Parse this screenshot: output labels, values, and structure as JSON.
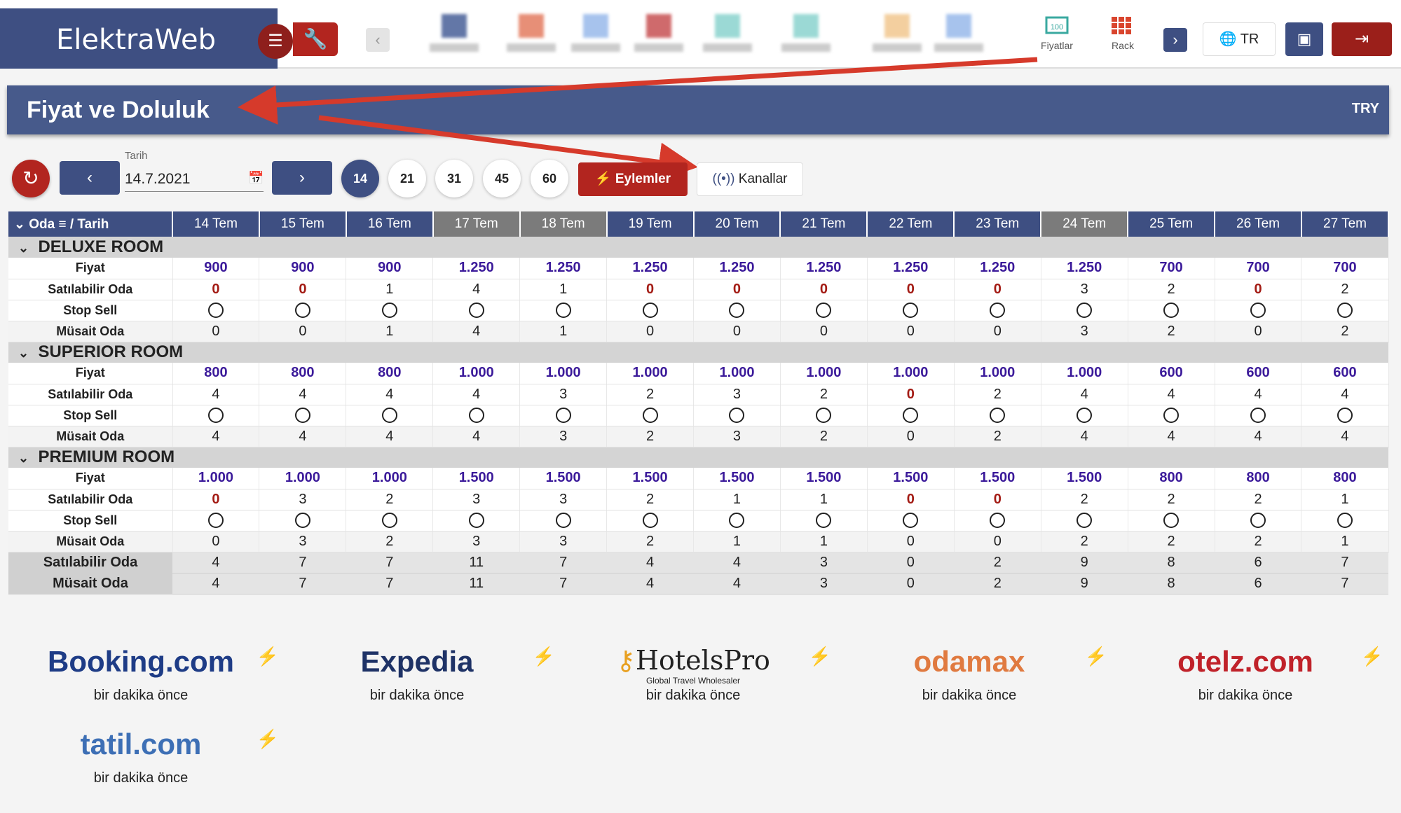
{
  "app": {
    "brand": "ElektraWeb",
    "toolbar": {
      "icons": [
        {
          "name": "blurred-1",
          "color": "#2f4a8a"
        },
        {
          "name": "blurred-2",
          "color": "#e06a4a"
        },
        {
          "name": "blurred-3",
          "color": "#8ab0e8"
        },
        {
          "name": "blurred-4",
          "color": "#c0393b"
        },
        {
          "name": "blurred-5",
          "color": "#7acdc7"
        },
        {
          "name": "blurred-6",
          "color": "#7acdc7"
        },
        {
          "name": "blurred-7",
          "color": "#f0c080"
        },
        {
          "name": "blurred-8",
          "color": "#8ab0e8"
        }
      ],
      "fiyatlar_label": "Fiyatlar",
      "rack_label": "Rack",
      "lang_label": "TR"
    }
  },
  "page": {
    "title": "Fiyat ve Doluluk",
    "currency": "TRY"
  },
  "controls": {
    "date_label": "Tarih",
    "date_value": "14.7.2021",
    "ranges": [
      "14",
      "21",
      "31",
      "45",
      "60"
    ],
    "eylemler": "Eylemler",
    "kanallar": "Kanallar"
  },
  "grid": {
    "header_label": "Oda",
    "header_suffix": "/ Tarih",
    "dates": [
      "14 Tem",
      "15 Tem",
      "16 Tem",
      "17 Tem",
      "18 Tem",
      "19 Tem",
      "20 Tem",
      "21 Tem",
      "22 Tem",
      "23 Tem",
      "24 Tem",
      "25 Tem",
      "26 Tem",
      "27 Tem"
    ],
    "labels": {
      "price": "Fiyat",
      "sellable": "Satılabilir Oda",
      "stop": "Stop Sell",
      "available": "Müsait Oda"
    },
    "rooms": [
      {
        "name": "DELUXE ROOM",
        "price": [
          "900",
          "900",
          "900",
          "1.250",
          "1.250",
          "1.250",
          "1.250",
          "1.250",
          "1.250",
          "1.250",
          "1.250",
          "700",
          "700",
          "700"
        ],
        "sellable": [
          "0",
          "0",
          "1",
          "4",
          "1",
          "0",
          "0",
          "0",
          "0",
          "0",
          "3",
          "2",
          "0",
          "2"
        ],
        "available": [
          "0",
          "0",
          "1",
          "4",
          "1",
          "0",
          "0",
          "0",
          "0",
          "0",
          "3",
          "2",
          "0",
          "2"
        ]
      },
      {
        "name": "SUPERIOR ROOM",
        "price": [
          "800",
          "800",
          "800",
          "1.000",
          "1.000",
          "1.000",
          "1.000",
          "1.000",
          "1.000",
          "1.000",
          "1.000",
          "600",
          "600",
          "600"
        ],
        "sellable": [
          "4",
          "4",
          "4",
          "4",
          "3",
          "2",
          "3",
          "2",
          "0",
          "2",
          "4",
          "4",
          "4",
          "4"
        ],
        "available": [
          "4",
          "4",
          "4",
          "4",
          "3",
          "2",
          "3",
          "2",
          "0",
          "2",
          "4",
          "4",
          "4",
          "4"
        ]
      },
      {
        "name": "PREMIUM ROOM",
        "price": [
          "1.000",
          "1.000",
          "1.000",
          "1.500",
          "1.500",
          "1.500",
          "1.500",
          "1.500",
          "1.500",
          "1.500",
          "1.500",
          "800",
          "800",
          "800"
        ],
        "sellable": [
          "0",
          "3",
          "2",
          "3",
          "3",
          "2",
          "1",
          "1",
          "0",
          "0",
          "2",
          "2",
          "2",
          "1"
        ],
        "available": [
          "0",
          "3",
          "2",
          "3",
          "3",
          "2",
          "1",
          "1",
          "0",
          "0",
          "2",
          "2",
          "2",
          "1"
        ]
      }
    ],
    "totals": {
      "sellable_label": "Satılabilir Oda",
      "available_label": "Müsait Oda",
      "sellable": [
        "4",
        "7",
        "7",
        "11",
        "7",
        "4",
        "4",
        "3",
        "0",
        "2",
        "9",
        "8",
        "6",
        "7"
      ],
      "available": [
        "4",
        "7",
        "7",
        "11",
        "7",
        "4",
        "4",
        "3",
        "0",
        "2",
        "9",
        "8",
        "6",
        "7"
      ]
    }
  },
  "channels": [
    {
      "name": "Booking.com",
      "time": "bir dakika önce",
      "color": "#1e3c86",
      "accent": "#3d8ee0"
    },
    {
      "name": "Expedia",
      "time": "bir dakika önce",
      "color": "#1e3266",
      "accent": "#f2c200"
    },
    {
      "name": "HotelsPro",
      "sub": "Global Travel Wholesaler",
      "time": "bir dakika önce",
      "color": "#222",
      "accent": "#e8a020"
    },
    {
      "name": "odamax",
      "time": "bir dakika önce",
      "color": "#e07a40",
      "accent": "#3b9be0"
    },
    {
      "name": "otelz.com",
      "time": "bir dakika önce",
      "color": "#c0222a",
      "accent": "#1e3c86"
    },
    {
      "name": "tatil.com",
      "time": "bir dakika önce",
      "color": "#3d6fb5",
      "accent": "#f5a623"
    }
  ]
}
